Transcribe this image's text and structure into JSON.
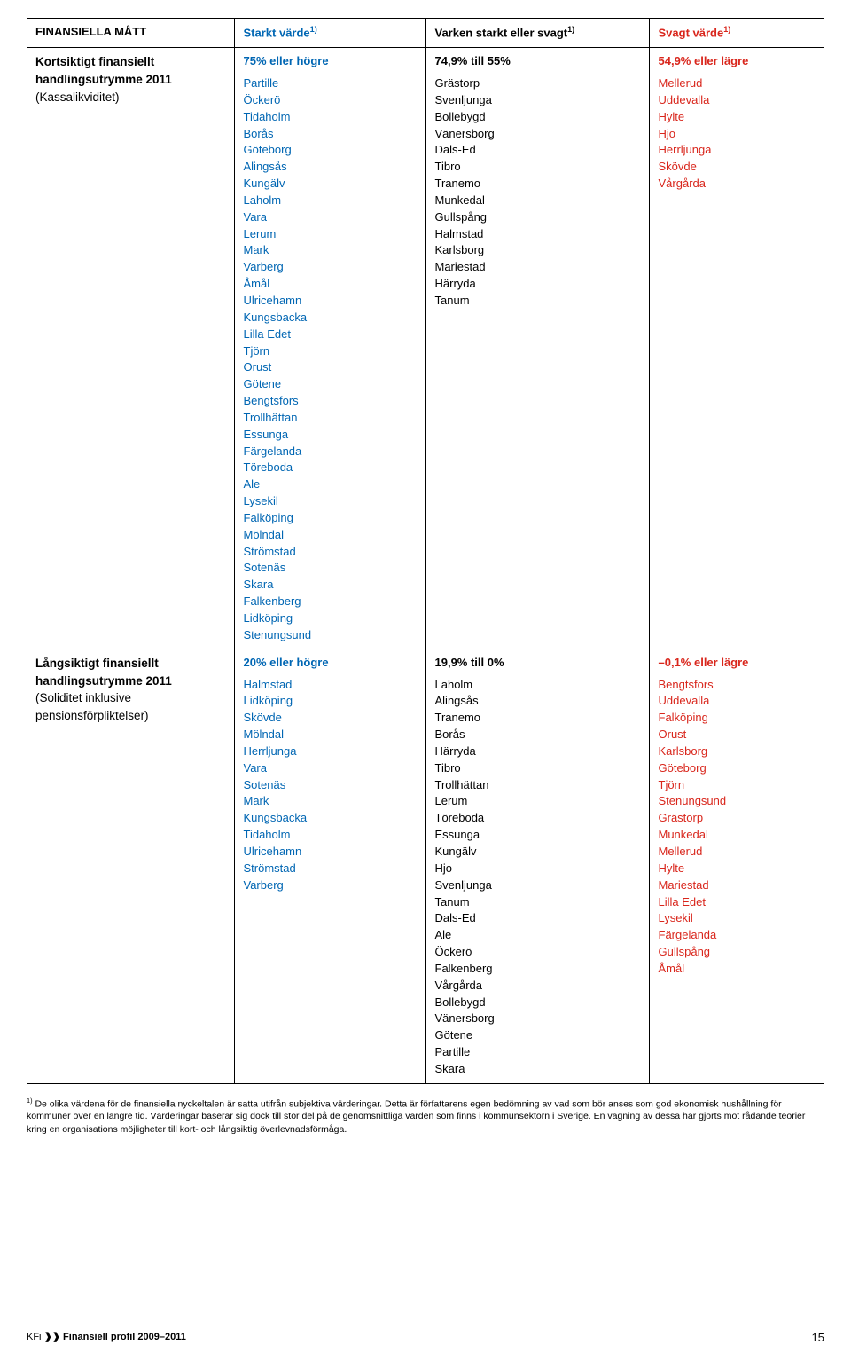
{
  "headers": {
    "c1": "FINANSIELLA MÅTT",
    "c2": "Starkt värde",
    "c3": "Varken starkt eller svagt",
    "c4": "Svagt värde",
    "sup": "1)"
  },
  "row1": {
    "label_line1": "Kortsiktigt finansiellt",
    "label_line2": "handlingsutrymme 2011",
    "label_sub": "(Kassalikviditet)",
    "col2_head": "75% eller högre",
    "col2_items": [
      "Partille",
      "Öckerö",
      "Tidaholm",
      "Borås",
      "Göteborg",
      "Alingsås",
      "Kungälv",
      "Laholm",
      "Vara",
      "Lerum",
      "Mark",
      "Varberg",
      "Åmål",
      "Ulricehamn",
      "Kungsbacka",
      "Lilla Edet",
      "Tjörn",
      "Orust",
      "Götene",
      "Bengtsfors",
      "Trollhättan",
      "Essunga",
      "Färgelanda",
      "Töreboda",
      "Ale",
      "Lysekil",
      "Falköping",
      "Mölndal",
      "Strömstad",
      "Sotenäs",
      "Skara",
      "Falkenberg",
      "Lidköping",
      "Stenungsund"
    ],
    "col3_head": "74,9% till 55%",
    "col3_items": [
      "Grästorp",
      "Svenljunga",
      "Bollebygd",
      "Vänersborg",
      "Dals-Ed",
      "Tibro",
      "Tranemo",
      "Munkedal",
      "Gullspång",
      "Halmstad",
      "Karlsborg",
      "Mariestad",
      "Härryda",
      "Tanum"
    ],
    "col4_head": "54,9% eller lägre",
    "col4_items": [
      "Mellerud",
      "Uddevalla",
      "Hylte",
      "Hjo",
      "Herrljunga",
      "Skövde",
      "Vårgårda"
    ]
  },
  "row2": {
    "label_line1": "Långsiktigt finansiellt",
    "label_line2": "handlingsutrymme 2011",
    "label_sub": "(Soliditet inklusive pensionsförpliktelser)",
    "col2_head": "20% eller högre",
    "col2_items": [
      "Halmstad",
      "Lidköping",
      "Skövde",
      "Mölndal",
      "Herrljunga",
      "Vara",
      "Sotenäs",
      "Mark",
      "Kungsbacka",
      "Tidaholm",
      "Ulricehamn",
      "Strömstad",
      "Varberg"
    ],
    "col3_head": "19,9% till 0%",
    "col3_items": [
      "Laholm",
      "Alingsås",
      "Tranemo",
      "Borås",
      "Härryda",
      "Tibro",
      "Trollhättan",
      "Lerum",
      "Töreboda",
      "Essunga",
      "Kungälv",
      "Hjo",
      "Svenljunga",
      "Tanum",
      "Dals-Ed",
      "Ale",
      "Öckerö",
      "Falkenberg",
      "Vårgårda",
      "Bollebygd",
      "Vänersborg",
      "Götene",
      "Partille",
      "Skara"
    ],
    "col4_head": "–0,1% eller lägre",
    "col4_items": [
      "Bengtsfors",
      "Uddevalla",
      "Falköping",
      "Orust",
      "Karlsborg",
      "Göteborg",
      "Tjörn",
      "Stenungsund",
      "Grästorp",
      "Munkedal",
      "Mellerud",
      "Hylte",
      "Mariestad",
      "Lilla Edet",
      "Lysekil",
      "Färgelanda",
      "Gullspång",
      "Åmål"
    ]
  },
  "footnote": {
    "sup": "1)",
    "text": " De olika värdena för de finansiella nyckeltalen är satta utifrån subjektiva värderingar. Detta är författarens egen bedömning av vad som bör anses som god ekonomisk hushållning för kommuner över en längre tid. Värderingar baserar sig dock till stor del på de genomsnittliga värden som finns i kommunsektorn i Sverige. En vägning av dessa har gjorts mot rådande teorier kring en organisations möjligheter till kort- och långsiktig överlevnadsförmåga."
  },
  "footer": {
    "brand_prefix": "KFi ",
    "brand_mark": "❱❱",
    "brand_suffix": "  Finansiell profil 2009–2011",
    "page": "15"
  },
  "colors": {
    "black": "#000000",
    "blue": "#0066b3",
    "red": "#d9261c"
  }
}
